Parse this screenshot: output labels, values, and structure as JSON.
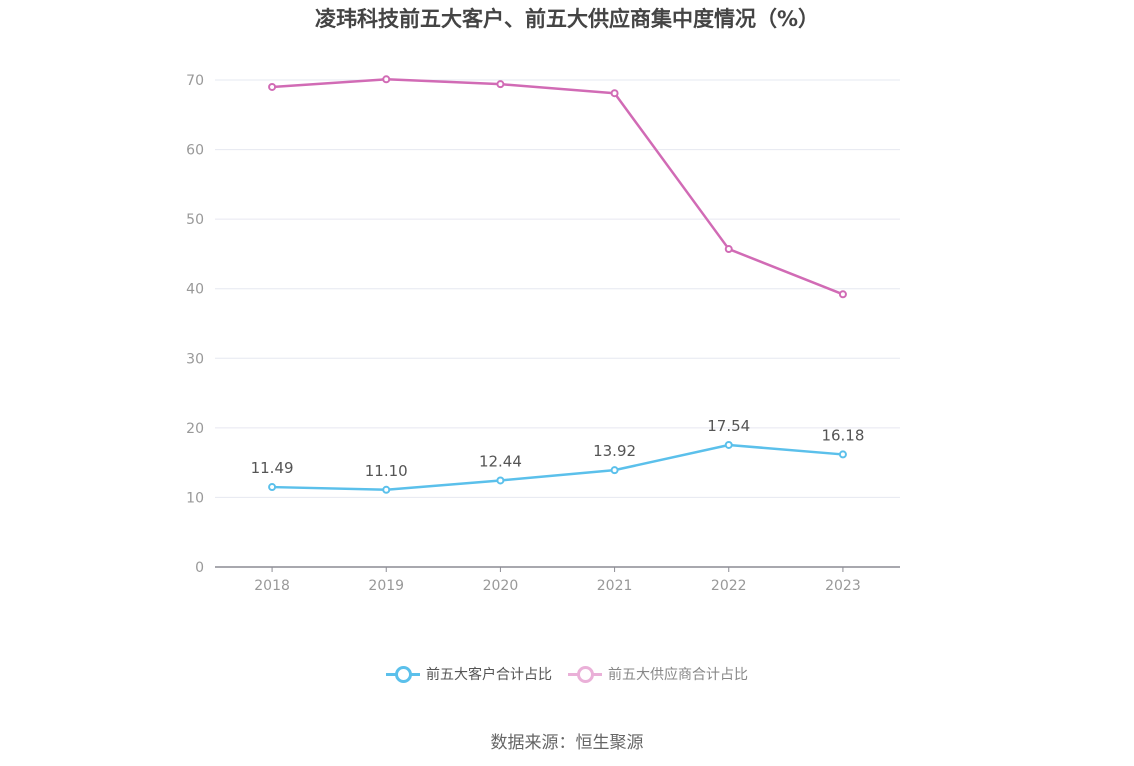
{
  "chart_data": {
    "type": "line",
    "title": "凌玮科技前五大客户、前五大供应商集中度情况（%）",
    "categories": [
      "2018",
      "2019",
      "2020",
      "2021",
      "2022",
      "2023"
    ],
    "ylim": [
      0,
      70
    ],
    "yticks": [
      0,
      10,
      20,
      30,
      40,
      50,
      60,
      70
    ],
    "grid": true,
    "legend_position": "bottom",
    "series": [
      {
        "name": "前五大客户合计占比",
        "values": [
          11.49,
          11.1,
          12.44,
          13.92,
          17.54,
          16.18
        ],
        "labels": [
          "11.49",
          "11.10",
          "12.44",
          "13.92",
          "17.54",
          "16.18"
        ],
        "color": "#5bc0eb",
        "show_labels": true
      },
      {
        "name": "前五大供应商合计占比",
        "values": [
          69.0,
          70.1,
          69.4,
          68.1,
          45.7,
          39.2
        ],
        "color": "#d16bb5",
        "legend_color": "#eab0d8",
        "show_labels": false
      }
    ]
  },
  "source": "数据来源：恒生聚源"
}
